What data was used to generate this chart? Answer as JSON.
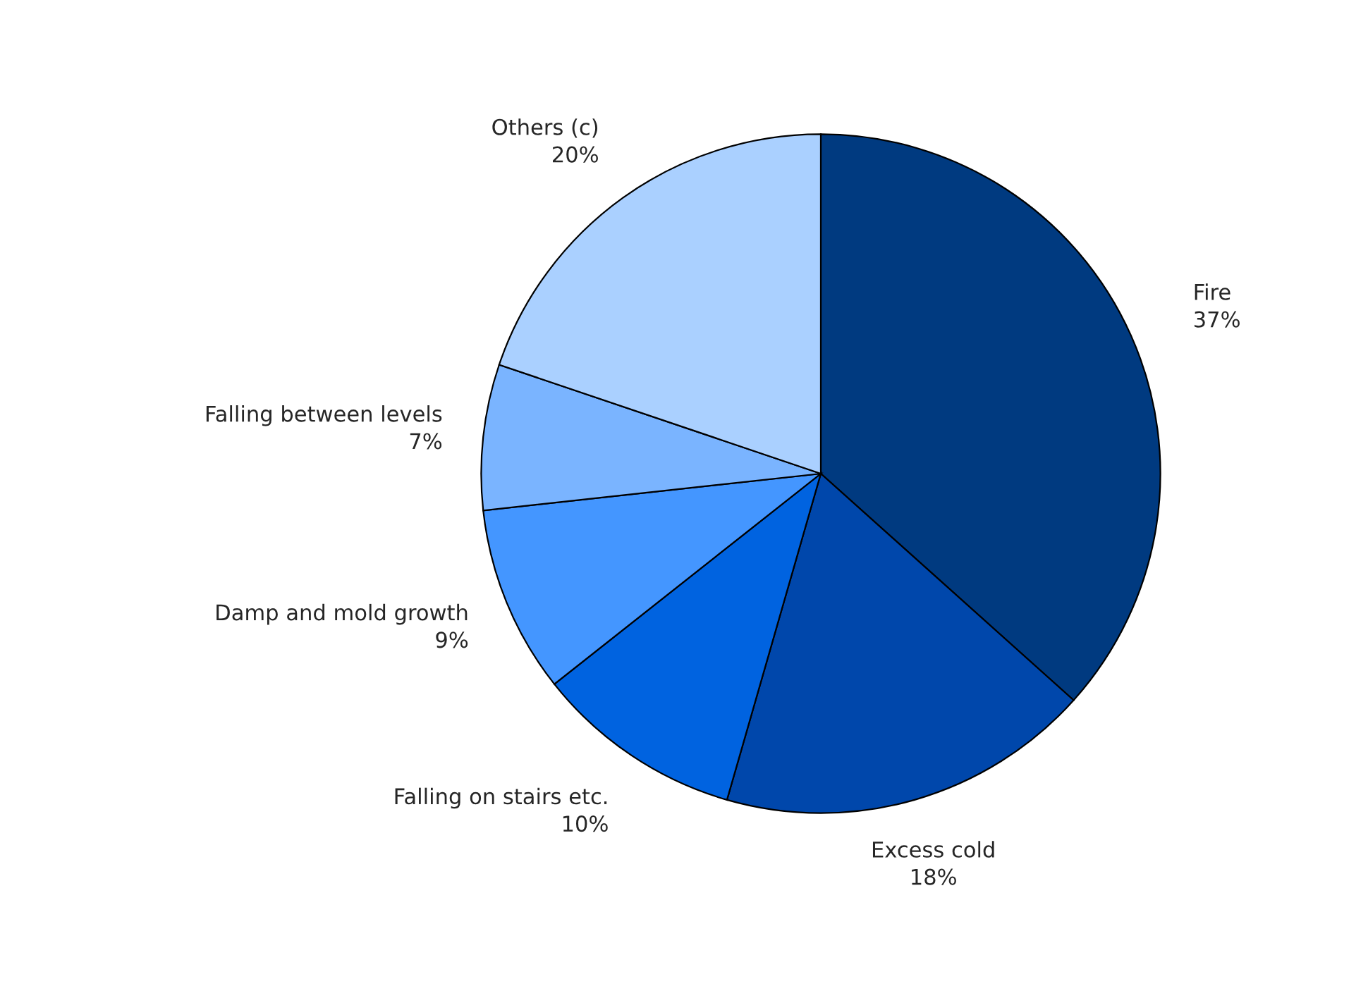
{
  "chart_data": {
    "type": "pie",
    "categories": [
      "Fire",
      "Excess cold",
      "Falling on stairs etc.",
      "Damp and mold growth",
      "Falling between levels",
      "Others (c)"
    ],
    "values": [
      37,
      18,
      10,
      9,
      7,
      20
    ],
    "value_labels": [
      "37%",
      "18%",
      "10%",
      "9%",
      "7%",
      "20%"
    ],
    "colors": [
      "#003a80",
      "#0047ab",
      "#0063e0",
      "#4496ff",
      "#7ab4ff",
      "#aad0ff"
    ],
    "legend": false
  }
}
